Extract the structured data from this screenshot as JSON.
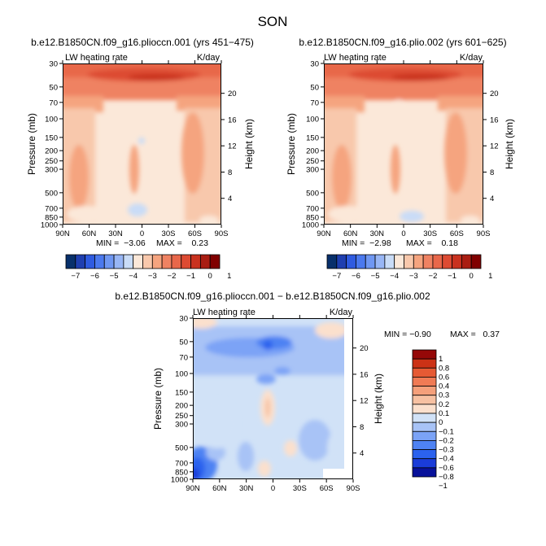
{
  "page": {
    "season": "SON",
    "diff_title": "b.e12.B1850CN.f09_g16.plioccn.001 − b.e12.B1850CN.f09_g16.plio.002"
  },
  "colors": {
    "panel_scale": [
      "#08306b",
      "#1f3fb0",
      "#2f5be0",
      "#4b79ee",
      "#6f97f2",
      "#98b6f5",
      "#c9dcf7",
      "#fbe8d9",
      "#f8c8ac",
      "#f5a47f",
      "#ef8262",
      "#e8674a",
      "#dd4b33",
      "#c9321f",
      "#a91d12",
      "#800000"
    ],
    "diff_scale": [
      "#08119a",
      "#1a3cd9",
      "#2b62ee",
      "#4e82f3",
      "#7ba3f6",
      "#a8c3f6",
      "#d1e2f7",
      "#fbe0cd",
      "#f7c1a2",
      "#f5a07b",
      "#f07b55",
      "#e65a34",
      "#cc3216",
      "#950808"
    ]
  },
  "chart_data": [
    {
      "type": "heatmap",
      "title": "b.e12.B1850CN.f09_g16.plioccn.001 (yrs 451−475)",
      "field_label": "LW heating rate",
      "units": "K/day",
      "xlabel": "",
      "ylabel": "Pressure (mb)",
      "y2label": "Height (km)",
      "x_ticks": [
        "90N",
        "60N",
        "30N",
        "0",
        "30S",
        "60S",
        "90S"
      ],
      "y_ticks": [
        "30",
        "50",
        "70",
        "100",
        "150",
        "200",
        "250",
        "300",
        "500",
        "700",
        "850",
        "1000"
      ],
      "y_scale": "log",
      "ylim": [
        1000,
        30
      ],
      "height_ticks": [
        "20",
        "16",
        "12",
        "8",
        "4"
      ],
      "min_text": "MIN =  −3.06",
      "max_text": "MAX =    0.23",
      "colorbar_labels": [
        "−7",
        "−6",
        "−5",
        "−4",
        "−3",
        "−2",
        "−1",
        "0",
        "1"
      ],
      "colorbar_orientation": "horizontal"
    },
    {
      "type": "heatmap",
      "title": "b.e12.B1850CN.f09_g16.plio.002 (yrs 601−625)",
      "field_label": "LW heating rate",
      "units": "K/day",
      "xlabel": "",
      "ylabel": "Pressure (mb)",
      "y2label": "Height (km)",
      "x_ticks": [
        "90N",
        "60N",
        "30N",
        "0",
        "30S",
        "60S",
        "90S"
      ],
      "y_ticks": [
        "30",
        "50",
        "70",
        "100",
        "150",
        "200",
        "250",
        "300",
        "500",
        "700",
        "850",
        "1000"
      ],
      "y_scale": "log",
      "ylim": [
        1000,
        30
      ],
      "height_ticks": [
        "20",
        "16",
        "12",
        "8",
        "4"
      ],
      "min_text": "MIN =  −2.98",
      "max_text": "MAX =    0.18",
      "colorbar_labels": [
        "−7",
        "−6",
        "−5",
        "−4",
        "−3",
        "−2",
        "−1",
        "0",
        "1"
      ],
      "colorbar_orientation": "horizontal"
    },
    {
      "type": "heatmap",
      "title": "b.e12.B1850CN.f09_g16.plioccn.001 − b.e12.B1850CN.f09_g16.plio.002",
      "field_label": "LW heating rate",
      "units": "K/day",
      "xlabel": "",
      "ylabel": "Pressure (mb)",
      "y2label": "Height (km)",
      "x_ticks": [
        "90N",
        "60N",
        "30N",
        "0",
        "30S",
        "60S",
        "90S"
      ],
      "y_ticks": [
        "30",
        "50",
        "70",
        "100",
        "150",
        "200",
        "250",
        "300",
        "500",
        "700",
        "850",
        "1000"
      ],
      "y_scale": "log",
      "ylim": [
        1000,
        30
      ],
      "height_ticks": [
        "20",
        "16",
        "12",
        "8",
        "4"
      ],
      "min_text": "MIN = −0.90",
      "max_text": "MAX =   0.37",
      "colorbar_labels": [
        "1",
        "0.8",
        "0.6",
        "0.4",
        "0.3",
        "0.2",
        "0.1",
        "0",
        "−0.1",
        "−0.2",
        "−0.3",
        "−0.4",
        "−0.6",
        "−0.8",
        "−1"
      ],
      "colorbar_orientation": "vertical"
    }
  ]
}
